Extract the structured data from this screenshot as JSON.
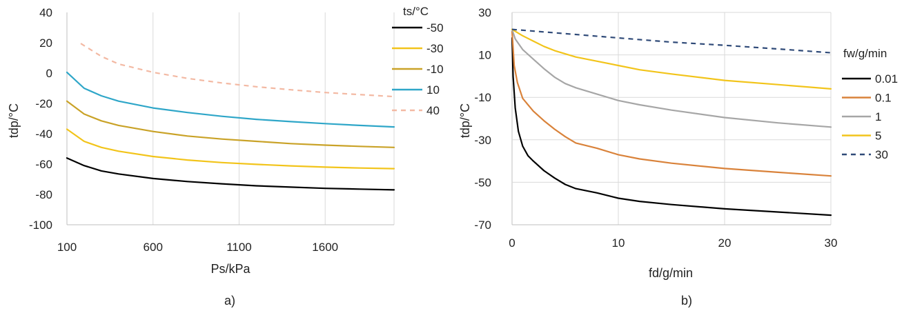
{
  "chart_data": [
    {
      "type": "line",
      "panel_label": "a)",
      "xlabel": "Ps/kPa",
      "ylabel": "tdp/°C",
      "xlim": [
        100,
        2000
      ],
      "ylim": [
        -100,
        40
      ],
      "x_ticks": [
        100,
        600,
        1100,
        1600
      ],
      "y_ticks": [
        -100,
        -80,
        -60,
        -40,
        -20,
        0,
        20,
        40
      ],
      "grid": "vertical",
      "legend_title": "ts/°C",
      "legend_position": "right",
      "series": [
        {
          "name": "-50",
          "color": "#000000",
          "dash": "solid",
          "x": [
            100,
            200,
            300,
            400,
            600,
            800,
            1000,
            1200,
            1400,
            1600,
            1800,
            2000
          ],
          "y": [
            -56,
            -61,
            -64.5,
            -66.5,
            -69.5,
            -71.5,
            -73,
            -74.3,
            -75.2,
            -76,
            -76.5,
            -77
          ]
        },
        {
          "name": "-30",
          "color": "#f2c41a",
          "dash": "solid",
          "x": [
            100,
            200,
            300,
            400,
            600,
            800,
            1000,
            1200,
            1400,
            1600,
            1800,
            2000
          ],
          "y": [
            -37,
            -45,
            -49,
            -51.5,
            -55,
            -57.3,
            -59,
            -60.2,
            -61.2,
            -62,
            -62.6,
            -63
          ]
        },
        {
          "name": "-10",
          "color": "#c9a227",
          "dash": "solid",
          "x": [
            100,
            200,
            300,
            400,
            600,
            800,
            1000,
            1200,
            1400,
            1600,
            1800,
            2000
          ],
          "y": [
            -18.5,
            -27,
            -31.5,
            -34.5,
            -38.5,
            -41.5,
            -43.5,
            -45,
            -46.5,
            -47.5,
            -48.3,
            -49
          ]
        },
        {
          "name": "10",
          "color": "#2ea6c8",
          "dash": "solid",
          "x": [
            100,
            200,
            300,
            400,
            600,
            800,
            1000,
            1200,
            1400,
            1600,
            1800,
            2000
          ],
          "y": [
            0.5,
            -10,
            -15,
            -18.5,
            -23,
            -26,
            -28.5,
            -30.5,
            -32,
            -33.3,
            -34.5,
            -35.5
          ]
        },
        {
          "name": "40",
          "color": "#f3b9a3",
          "dash": "dashed",
          "x": [
            180,
            300,
            400,
            600,
            800,
            1000,
            1200,
            1400,
            1600,
            1800,
            2000
          ],
          "y": [
            19.5,
            11,
            6,
            0.5,
            -3.5,
            -6.5,
            -9,
            -11,
            -12.8,
            -14.2,
            -15.5
          ]
        }
      ]
    },
    {
      "type": "line",
      "panel_label": "b)",
      "xlabel": "fd/g/min",
      "ylabel": "tdp/°C",
      "xlim": [
        0,
        30
      ],
      "ylim": [
        -70,
        30
      ],
      "x_ticks": [
        0,
        10,
        20,
        30
      ],
      "y_ticks": [
        -70,
        -50,
        -30,
        -10,
        10,
        30
      ],
      "grid": "both",
      "legend_title": "fw/g/min",
      "legend_position": "right",
      "series": [
        {
          "name": "0.01",
          "color": "#000000",
          "dash": "solid",
          "x": [
            0,
            0.1,
            0.3,
            0.6,
            1,
            1.5,
            2,
            3,
            4,
            5,
            6,
            8,
            10,
            12,
            15,
            20,
            25,
            30
          ],
          "y": [
            18,
            0,
            -15,
            -26,
            -33,
            -37.5,
            -40,
            -44.5,
            -48,
            -51,
            -53,
            -55,
            -57.5,
            -59,
            -60.5,
            -62.5,
            -64,
            -65.5
          ]
        },
        {
          "name": "0.1",
          "color": "#d9823a",
          "dash": "solid",
          "x": [
            0,
            0.2,
            0.5,
            1,
            2,
            3,
            4,
            5,
            6,
            8,
            10,
            12,
            15,
            20,
            25,
            30
          ],
          "y": [
            21,
            5,
            -3,
            -10.5,
            -16.5,
            -21,
            -25,
            -28.5,
            -31.5,
            -34,
            -37,
            -39,
            -41,
            -43.5,
            -45.3,
            -47
          ]
        },
        {
          "name": "1",
          "color": "#a6a6a6",
          "dash": "solid",
          "x": [
            0,
            0.3,
            1,
            2,
            3,
            4,
            5,
            6,
            8,
            10,
            12,
            15,
            20,
            25,
            30
          ],
          "y": [
            22,
            17.5,
            12.5,
            8,
            3.5,
            -0.5,
            -3.5,
            -5.5,
            -8.5,
            -11.5,
            -13.5,
            -16,
            -19.5,
            -22,
            -24
          ]
        },
        {
          "name": "5",
          "color": "#f2c41a",
          "dash": "solid",
          "x": [
            0,
            1,
            2,
            3,
            4,
            6,
            8,
            10,
            12,
            15,
            20,
            25,
            30
          ],
          "y": [
            22,
            19,
            16.5,
            14,
            12,
            9,
            7,
            5,
            3,
            1,
            -2,
            -4,
            -6
          ]
        },
        {
          "name": "30",
          "color": "#2f4a78",
          "dash": "dashed",
          "x": [
            0,
            5,
            10,
            15,
            20,
            25,
            30
          ],
          "y": [
            22,
            20,
            18,
            16,
            14.5,
            12.8,
            11
          ]
        }
      ]
    }
  ]
}
